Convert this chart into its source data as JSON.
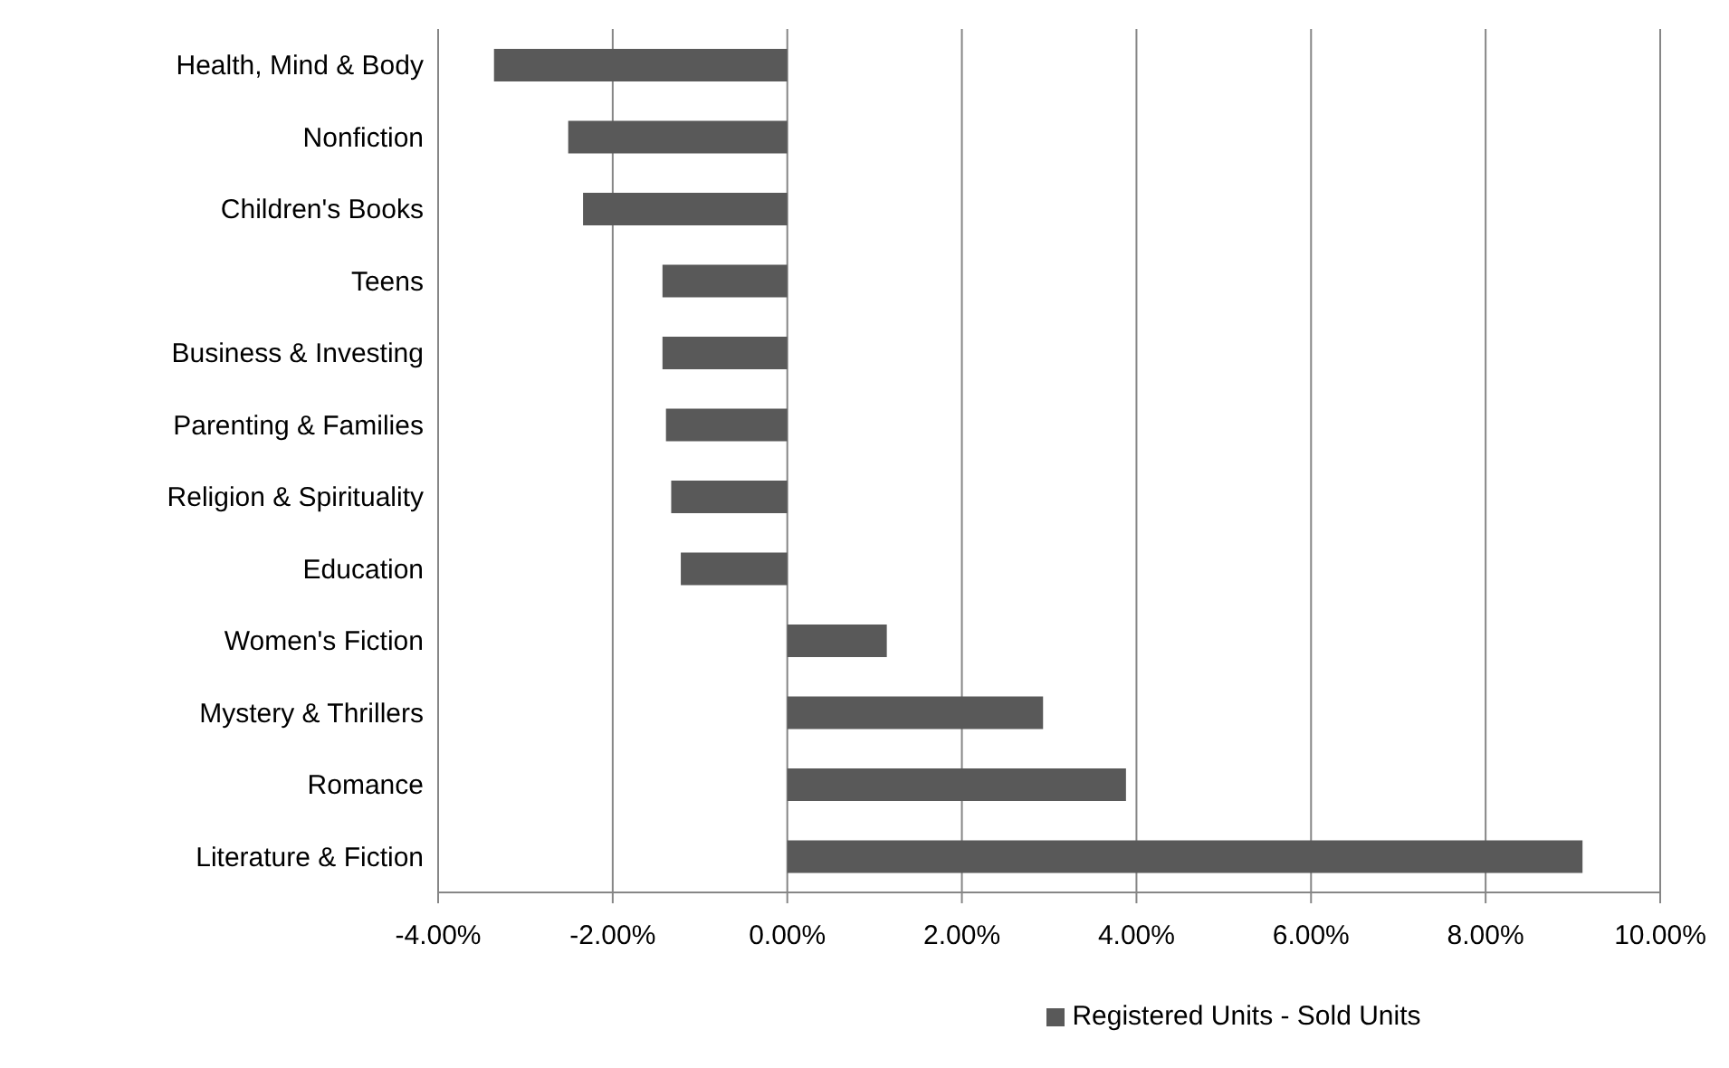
{
  "chart_data": {
    "type": "bar",
    "orientation": "horizontal",
    "categories": [
      "Health, Mind & Body",
      "Nonfiction",
      "Children's Books",
      "Teens",
      "Business & Investing",
      "Parenting & Families",
      "Religion & Spirituality",
      "Education",
      "Women's Fiction",
      "Mystery & Thrillers",
      "Romance",
      "Literature & Fiction"
    ],
    "series": [
      {
        "name": "Registered Units - Sold Units",
        "color": "#595959",
        "values": [
          -3.36,
          -2.51,
          -2.34,
          -1.43,
          -1.43,
          -1.39,
          -1.33,
          -1.22,
          1.14,
          2.93,
          3.88,
          9.11
        ]
      }
    ],
    "xlim": [
      -4,
      10
    ],
    "xticks": [
      {
        "value": -4,
        "label": "-4.00%"
      },
      {
        "value": -2,
        "label": "-2.00%"
      },
      {
        "value": 0,
        "label": "0.00%"
      },
      {
        "value": 2,
        "label": "2.00%"
      },
      {
        "value": 4,
        "label": "4.00%"
      },
      {
        "value": 6,
        "label": "6.00%"
      },
      {
        "value": 8,
        "label": "8.00%"
      },
      {
        "value": 10,
        "label": "10.00%"
      }
    ],
    "grid": "x",
    "legend": "bottom"
  }
}
